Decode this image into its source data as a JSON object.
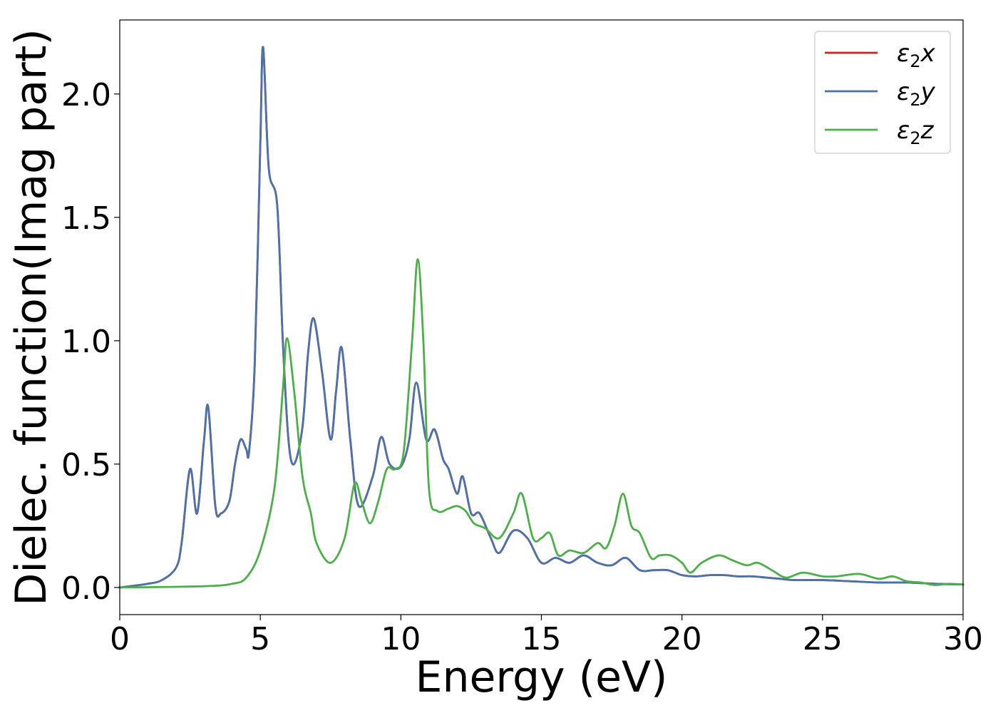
{
  "chart_data": {
    "type": "line",
    "title": "",
    "xlabel": "Energy (eV)",
    "ylabel": "Dielec. function(Imag part)",
    "xlim": [
      0,
      30
    ],
    "ylim": [
      -0.11,
      2.3
    ],
    "xticks": [
      0,
      5,
      10,
      15,
      20,
      25,
      30
    ],
    "xtick_labels": [
      "0",
      "5",
      "10",
      "15",
      "20",
      "25",
      "30"
    ],
    "yticks": [
      0.0,
      0.5,
      1.0,
      1.5,
      2.0
    ],
    "ytick_labels": [
      "0.0",
      "0.5",
      "1.0",
      "1.5",
      "2.0"
    ],
    "grid": false,
    "legend_position": "top-right",
    "series": [
      {
        "name": "ε2x",
        "color": "#e41a1c",
        "x": [
          0,
          1,
          1.5,
          2,
          2.2,
          2.5,
          2.75,
          3,
          3.15,
          3.4,
          3.6,
          3.9,
          4.1,
          4.3,
          4.5,
          4.6,
          4.8,
          5.0,
          5.1,
          5.3,
          5.6,
          5.8,
          6.0,
          6.2,
          6.5,
          6.7,
          6.9,
          7.2,
          7.5,
          7.7,
          7.9,
          8.2,
          8.5,
          9.0,
          9.3,
          9.6,
          10.0,
          10.3,
          10.55,
          10.9,
          11.2,
          11.5,
          11.7,
          12.0,
          12.2,
          12.5,
          12.8,
          13.2,
          13.5,
          14.0,
          14.5,
          15.0,
          15.5,
          16.0,
          16.5,
          17.0,
          17.5,
          18.0,
          18.5,
          19.0,
          19.5,
          20.0,
          20.5,
          21.0,
          21.5,
          22.0,
          22.5,
          23.0,
          23.5,
          24.0,
          25.0,
          26.0,
          27.0,
          28.0,
          29.0,
          30.0
        ],
        "y": [
          0.0,
          0.015,
          0.03,
          0.08,
          0.18,
          0.48,
          0.3,
          0.6,
          0.73,
          0.33,
          0.3,
          0.35,
          0.5,
          0.6,
          0.56,
          0.55,
          0.9,
          1.8,
          2.19,
          1.7,
          1.55,
          1.0,
          0.6,
          0.5,
          0.65,
          0.95,
          1.09,
          0.87,
          0.6,
          0.8,
          0.97,
          0.6,
          0.33,
          0.45,
          0.61,
          0.5,
          0.49,
          0.6,
          0.83,
          0.6,
          0.64,
          0.52,
          0.48,
          0.38,
          0.45,
          0.3,
          0.3,
          0.2,
          0.14,
          0.23,
          0.2,
          0.1,
          0.12,
          0.1,
          0.13,
          0.1,
          0.09,
          0.12,
          0.07,
          0.07,
          0.07,
          0.05,
          0.045,
          0.05,
          0.05,
          0.045,
          0.045,
          0.04,
          0.035,
          0.03,
          0.03,
          0.025,
          0.02,
          0.02,
          0.015,
          0.012
        ]
      },
      {
        "name": "ε2y",
        "color": "#4a73a9",
        "x": [
          0,
          1,
          1.5,
          2,
          2.2,
          2.5,
          2.75,
          3,
          3.15,
          3.4,
          3.6,
          3.9,
          4.1,
          4.3,
          4.5,
          4.6,
          4.8,
          5.0,
          5.1,
          5.3,
          5.6,
          5.8,
          6.0,
          6.2,
          6.5,
          6.7,
          6.9,
          7.2,
          7.5,
          7.7,
          7.9,
          8.2,
          8.5,
          9.0,
          9.3,
          9.6,
          10.0,
          10.3,
          10.55,
          10.9,
          11.2,
          11.5,
          11.7,
          12.0,
          12.2,
          12.5,
          12.8,
          13.2,
          13.5,
          14.0,
          14.5,
          15.0,
          15.5,
          16.0,
          16.5,
          17.0,
          17.5,
          18.0,
          18.5,
          19.0,
          19.5,
          20.0,
          20.5,
          21.0,
          21.5,
          22.0,
          22.5,
          23.0,
          23.5,
          24.0,
          25.0,
          26.0,
          27.0,
          28.0,
          29.0,
          30.0
        ],
        "y": [
          0.0,
          0.015,
          0.03,
          0.08,
          0.18,
          0.48,
          0.3,
          0.6,
          0.73,
          0.33,
          0.3,
          0.35,
          0.5,
          0.6,
          0.56,
          0.55,
          0.9,
          1.8,
          2.19,
          1.7,
          1.55,
          1.0,
          0.6,
          0.5,
          0.65,
          0.95,
          1.09,
          0.87,
          0.6,
          0.8,
          0.97,
          0.6,
          0.33,
          0.45,
          0.61,
          0.5,
          0.49,
          0.6,
          0.83,
          0.6,
          0.64,
          0.52,
          0.48,
          0.38,
          0.45,
          0.3,
          0.3,
          0.2,
          0.14,
          0.23,
          0.2,
          0.1,
          0.12,
          0.1,
          0.13,
          0.1,
          0.09,
          0.12,
          0.07,
          0.07,
          0.07,
          0.05,
          0.045,
          0.05,
          0.05,
          0.045,
          0.045,
          0.04,
          0.035,
          0.03,
          0.03,
          0.025,
          0.02,
          0.02,
          0.015,
          0.012
        ]
      },
      {
        "name": "ε2z",
        "color": "#4daf4a",
        "x": [
          0,
          3,
          4,
          4.5,
          5.0,
          5.5,
          5.8,
          5.95,
          6.2,
          6.5,
          6.8,
          7.0,
          7.5,
          8.0,
          8.35,
          8.6,
          8.9,
          9.2,
          9.5,
          9.8,
          10.1,
          10.4,
          10.6,
          10.8,
          11.0,
          11.3,
          11.7,
          12.0,
          12.3,
          12.6,
          13.0,
          13.5,
          14.0,
          14.3,
          14.7,
          15.0,
          15.3,
          15.6,
          16.0,
          16.5,
          17.0,
          17.3,
          17.6,
          17.9,
          18.2,
          18.5,
          18.9,
          19.2,
          19.6,
          20.0,
          20.3,
          20.7,
          21.3,
          21.8,
          22.3,
          22.7,
          23.2,
          23.7,
          24.3,
          25.0,
          25.5,
          26.3,
          27.0,
          27.5,
          28.0,
          28.5,
          29.0,
          29.5,
          30.0
        ],
        "y": [
          0.0,
          0.005,
          0.015,
          0.04,
          0.15,
          0.4,
          0.8,
          1.01,
          0.8,
          0.45,
          0.3,
          0.18,
          0.1,
          0.2,
          0.42,
          0.35,
          0.26,
          0.35,
          0.48,
          0.48,
          0.55,
          1.0,
          1.33,
          1.0,
          0.4,
          0.31,
          0.32,
          0.33,
          0.31,
          0.26,
          0.24,
          0.2,
          0.3,
          0.38,
          0.2,
          0.2,
          0.22,
          0.13,
          0.15,
          0.14,
          0.18,
          0.16,
          0.25,
          0.38,
          0.25,
          0.22,
          0.12,
          0.13,
          0.13,
          0.1,
          0.06,
          0.1,
          0.13,
          0.11,
          0.09,
          0.1,
          0.07,
          0.04,
          0.06,
          0.045,
          0.045,
          0.055,
          0.035,
          0.045,
          0.025,
          0.02,
          0.01,
          0.015,
          0.012
        ]
      }
    ]
  }
}
